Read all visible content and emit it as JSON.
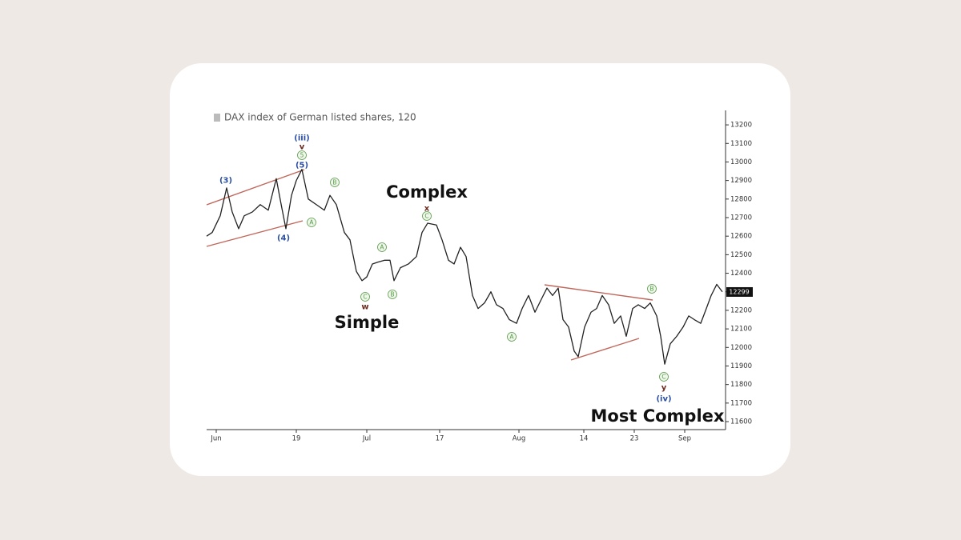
{
  "chart_data": {
    "type": "line",
    "title": "DAX index of German listed shares, 120",
    "x": [
      0,
      7,
      17,
      25,
      32,
      40,
      47,
      57,
      67,
      77,
      87,
      94,
      99,
      106,
      112,
      119,
      127,
      137,
      147,
      154,
      162,
      172,
      179,
      187,
      194,
      200,
      207,
      214,
      222,
      229,
      234,
      242,
      252,
      262,
      269,
      276,
      287,
      294,
      302,
      309,
      317,
      324,
      332,
      339,
      347,
      355,
      362,
      370,
      378,
      387,
      394,
      402,
      410,
      418,
      425,
      432,
      439,
      445,
      452,
      459,
      464,
      472,
      480,
      487,
      494,
      502,
      509,
      517,
      524,
      532,
      539,
      547,
      554,
      562,
      567,
      572,
      579,
      587,
      595,
      602,
      609,
      617,
      624,
      630,
      637,
      644
    ],
    "values": [
      12600,
      12620,
      12710,
      12860,
      12730,
      12640,
      12710,
      12730,
      12770,
      12740,
      12910,
      12750,
      12640,
      12820,
      12900,
      12960,
      12800,
      12770,
      12740,
      12820,
      12770,
      12620,
      12580,
      12410,
      12360,
      12380,
      12450,
      12460,
      12470,
      12470,
      12360,
      12430,
      12450,
      12490,
      12620,
      12670,
      12660,
      12580,
      12470,
      12450,
      12540,
      12490,
      12280,
      12210,
      12240,
      12300,
      12230,
      12210,
      12150,
      12130,
      12210,
      12280,
      12190,
      12260,
      12320,
      12280,
      12320,
      12150,
      12110,
      11980,
      11950,
      12110,
      12190,
      12210,
      12280,
      12230,
      12130,
      12170,
      12060,
      12210,
      12230,
      12210,
      12240,
      12170,
      12060,
      11910,
      12020,
      12060,
      12110,
      12170,
      12150,
      12130,
      12210,
      12280,
      12340,
      12300
    ],
    "color": "#222222",
    "xlim": [
      0,
      648
    ],
    "xticks": [
      {
        "value": 12,
        "label": "Jun"
      },
      {
        "value": 112,
        "label": "19"
      },
      {
        "value": 200,
        "label": "Jul"
      },
      {
        "value": 291,
        "label": "17"
      },
      {
        "value": 390,
        "label": "Aug"
      },
      {
        "value": 471,
        "label": "14"
      },
      {
        "value": 534,
        "label": "23"
      },
      {
        "value": 597,
        "label": "Sep"
      }
    ],
    "ylim": [
      11557,
      13278
    ],
    "yticks": [
      11600,
      11700,
      11800,
      11900,
      12000,
      12100,
      12200,
      12300,
      12400,
      12500,
      12600,
      12700,
      12800,
      12900,
      13000,
      13100,
      13200
    ],
    "last_value": 12299,
    "wave_labels": [
      {
        "text": "(iii)",
        "style": "blue"
      },
      {
        "text": "v",
        "style": "brown"
      },
      {
        "text": "5",
        "style": "circle"
      },
      {
        "text": "(5)",
        "style": "blue"
      },
      {
        "text": "(3)",
        "style": "blue"
      },
      {
        "text": "(4)",
        "style": "blue"
      },
      {
        "text": "A",
        "style": "circle"
      },
      {
        "text": "B",
        "style": "circle"
      },
      {
        "text": "A",
        "style": "circle"
      },
      {
        "text": "C",
        "style": "circle"
      },
      {
        "text": "w",
        "style": "brown"
      },
      {
        "text": "B",
        "style": "circle"
      },
      {
        "text": "x",
        "style": "brown"
      },
      {
        "text": "C",
        "style": "circle"
      },
      {
        "text": "A",
        "style": "circle"
      },
      {
        "text": "B",
        "style": "circle"
      },
      {
        "text": "C",
        "style": "circle"
      },
      {
        "text": "y",
        "style": "brown"
      },
      {
        "text": "(iv)",
        "style": "blue"
      }
    ],
    "callouts": [
      "Complex",
      "Simple",
      "Most Complex"
    ]
  }
}
